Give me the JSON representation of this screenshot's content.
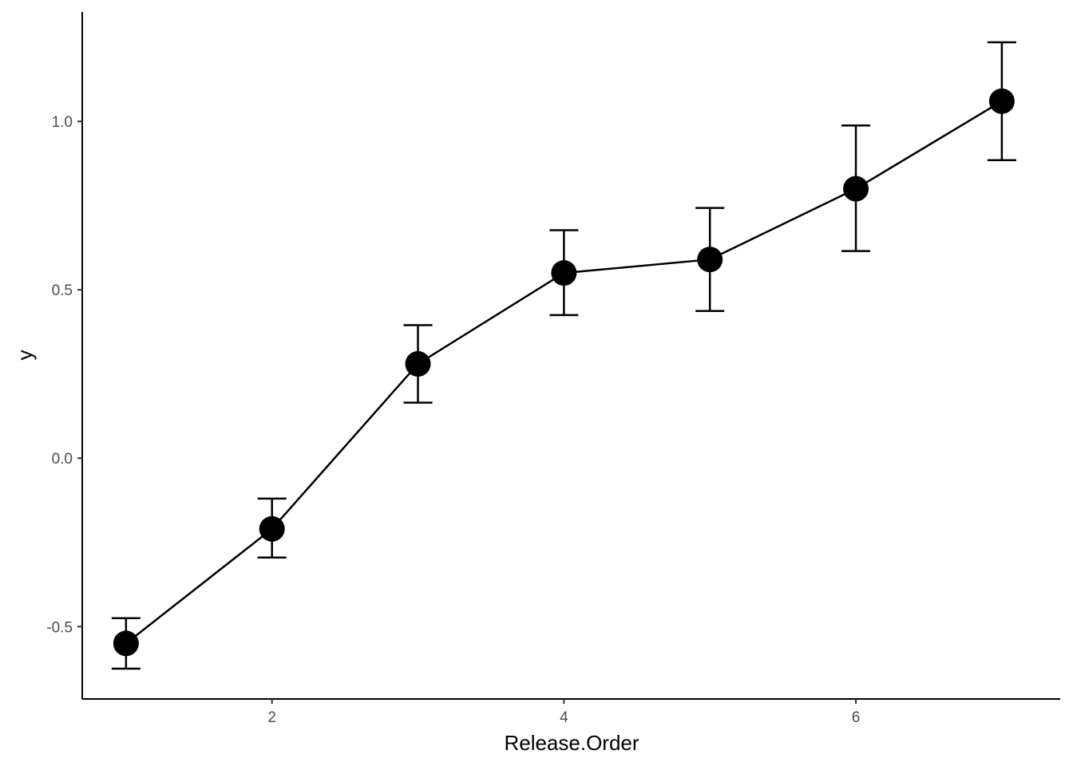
{
  "chart_data": {
    "type": "line",
    "xlabel": "Release.Order",
    "ylabel": "y",
    "xlim": [
      0.7,
      7.4
    ],
    "ylim": [
      -0.715,
      1.325
    ],
    "x_ticks": [
      2,
      4,
      6
    ],
    "x_tick_labels": [
      "2",
      "4",
      "6"
    ],
    "y_ticks": [
      -0.5,
      0.0,
      0.5,
      1.0
    ],
    "y_tick_labels": [
      "-0.5",
      "0.0",
      "0.5",
      "1.0"
    ],
    "grid": false,
    "legend": "none",
    "color": "#000000",
    "series": [
      {
        "x": [
          1,
          2,
          3,
          4,
          5,
          6,
          7
        ],
        "y": [
          -0.55,
          -0.21,
          0.28,
          0.55,
          0.59,
          0.8,
          1.06
        ],
        "error_lower": [
          -0.625,
          -0.295,
          0.165,
          0.425,
          0.437,
          0.615,
          0.885
        ],
        "error_upper": [
          -0.475,
          -0.12,
          0.395,
          0.677,
          0.743,
          0.988,
          1.235
        ]
      }
    ]
  }
}
